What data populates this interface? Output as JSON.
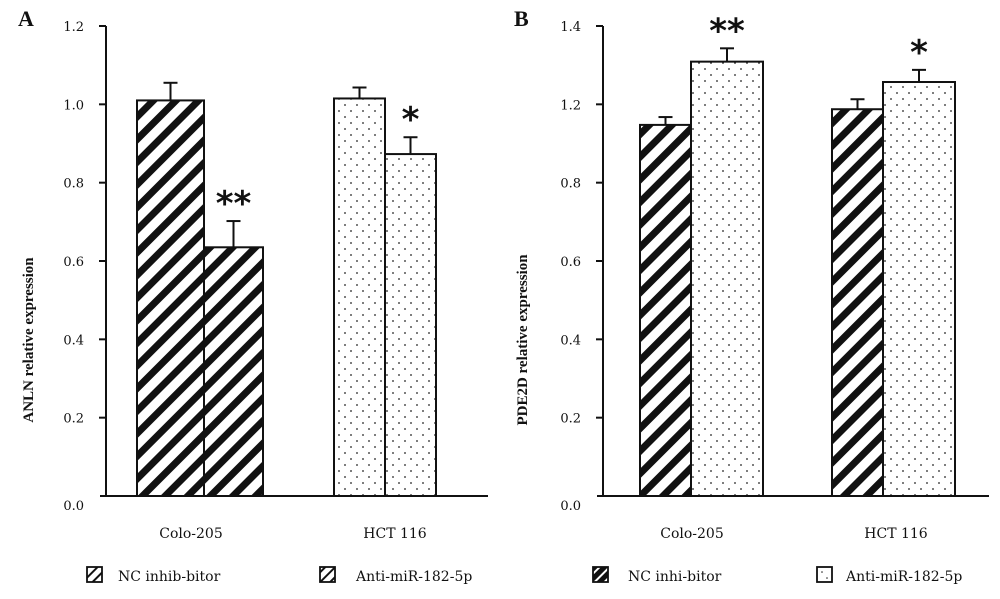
{
  "chart_data": [
    {
      "panel": "A",
      "type": "bar",
      "title": "",
      "xlabel": "",
      "ylabel": "ANLN relative expression",
      "categories": [
        "Colo-205",
        "HCT 116"
      ],
      "yticks": [
        0.0,
        0.2,
        0.4,
        0.6,
        0.8,
        1.0,
        1.2
      ],
      "ytick_labels": [
        "0.0",
        "0.2",
        "0.4",
        "0.6",
        "0.8",
        "1.0",
        "1.2"
      ],
      "ylim": [
        0,
        1.2
      ],
      "grid": false,
      "series": [
        {
          "name": "NC inhib-bitor",
          "values": [
            1.01,
            1.015
          ],
          "errors": [
            0.045,
            0.028
          ],
          "patterns": [
            "hatch",
            "dots"
          ]
        },
        {
          "name": "Anti-miR-182-5p",
          "values": [
            0.635,
            0.873
          ],
          "errors": [
            0.067,
            0.043
          ],
          "patterns": [
            "hatch",
            "dots"
          ]
        }
      ],
      "significance": [
        {
          "category": "Colo-205",
          "series": "Anti-miR-182-5p",
          "label": "**"
        },
        {
          "category": "HCT 116",
          "series": "Anti-miR-182-5p",
          "label": "*"
        }
      ],
      "legend": {
        "placement": "bottom",
        "entries": [
          {
            "label": "NC inhib-bitor",
            "icon": "hatch-light"
          },
          {
            "label": "Anti-miR-182-5p",
            "icon": "hatch-light"
          }
        ]
      }
    },
    {
      "panel": "B",
      "type": "bar",
      "title": "",
      "xlabel": "",
      "ylabel": "PDE2D relative expression",
      "categories": [
        "Colo-205",
        "HCT 116"
      ],
      "yticks": [
        0.0,
        0.2,
        0.4,
        0.6,
        0.8,
        1.2,
        1.4
      ],
      "ytick_labels": [
        "0.0",
        "0.2",
        "0.4",
        "0.6",
        "0.8",
        "1.2",
        "1.4"
      ],
      "ylim": [
        0,
        1.4
      ],
      "grid": false,
      "series": [
        {
          "name": "NC inhi-bitor",
          "values": [
            1.095,
            1.175
          ],
          "errors": [
            0.04,
            0.038
          ],
          "patterns": [
            "hatch",
            "hatch"
          ]
        },
        {
          "name": "Anti-miR-182-5p",
          "values": [
            1.309,
            1.257
          ],
          "errors": [
            0.034,
            0.031
          ],
          "patterns": [
            "dots",
            "dots"
          ]
        }
      ],
      "significance": [
        {
          "category": "Colo-205",
          "series": "Anti-miR-182-5p",
          "label": "**"
        },
        {
          "category": "HCT 116",
          "series": "Anti-miR-182-5p",
          "label": "*"
        }
      ],
      "legend": {
        "placement": "bottom",
        "entries": [
          {
            "label": "NC inhi-bitor",
            "icon": "hatch-dark"
          },
          {
            "label": "Anti-miR-182-5p",
            "icon": "dots"
          }
        ]
      }
    }
  ],
  "colors": {
    "ink": "#111111",
    "background": "#ffffff"
  }
}
